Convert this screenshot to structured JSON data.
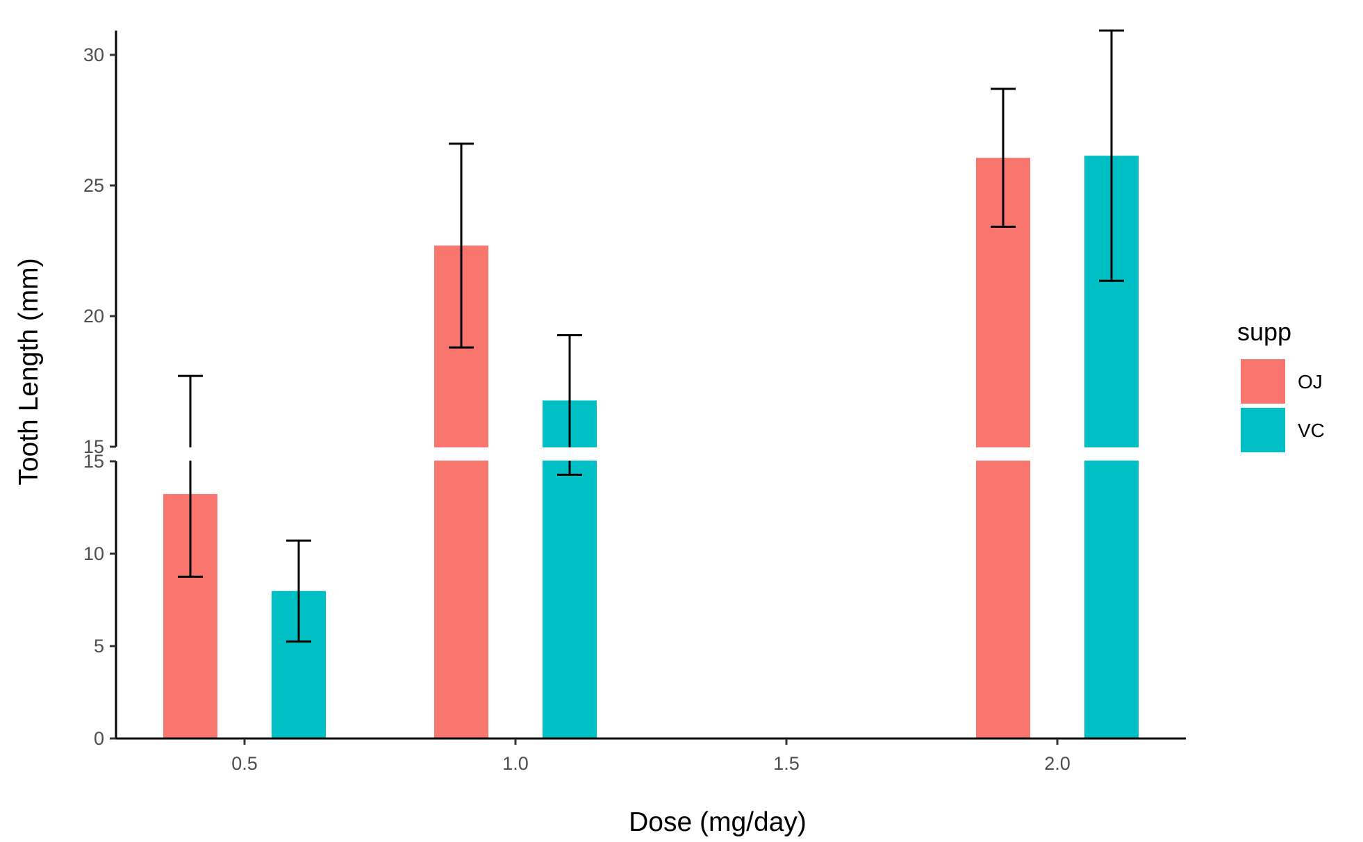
{
  "chart_data": {
    "type": "bar",
    "title": "",
    "xlabel": "Dose (mg/day)",
    "ylabel": "Tooth Length (mm)",
    "x_ticks": [
      "0.5",
      "1.0",
      "1.5",
      "2.0"
    ],
    "x_tick_values": [
      0.5,
      1.0,
      1.5,
      2.0
    ],
    "xlim": [
      0.25,
      2.25
    ],
    "y_axis_break": true,
    "lower_panel": {
      "ylim": [
        0,
        15
      ],
      "ticks": [
        "0",
        "5",
        "10",
        "15"
      ],
      "tick_values": [
        0,
        5,
        10,
        15
      ]
    },
    "upper_panel": {
      "ylim": [
        15,
        30.9
      ],
      "ticks": [
        "15",
        "20",
        "25",
        "30"
      ],
      "tick_values": [
        15,
        20,
        25,
        30
      ]
    },
    "legend": {
      "title": "supp",
      "position": "right"
    },
    "grid": false,
    "series": [
      {
        "name": "OJ",
        "color": "#F8766D",
        "x": [
          0.5,
          1.0,
          2.0
        ],
        "values": [
          13.23,
          22.7,
          26.06
        ],
        "err_low": [
          8.75,
          18.8,
          23.42
        ],
        "err_high": [
          17.71,
          26.6,
          28.7
        ]
      },
      {
        "name": "VC",
        "color": "#00BFC4",
        "x": [
          0.5,
          1.0,
          2.0
        ],
        "values": [
          7.98,
          16.77,
          26.14
        ],
        "err_low": [
          5.25,
          14.27,
          21.35
        ],
        "err_high": [
          10.71,
          19.27,
          30.93
        ]
      }
    ]
  }
}
